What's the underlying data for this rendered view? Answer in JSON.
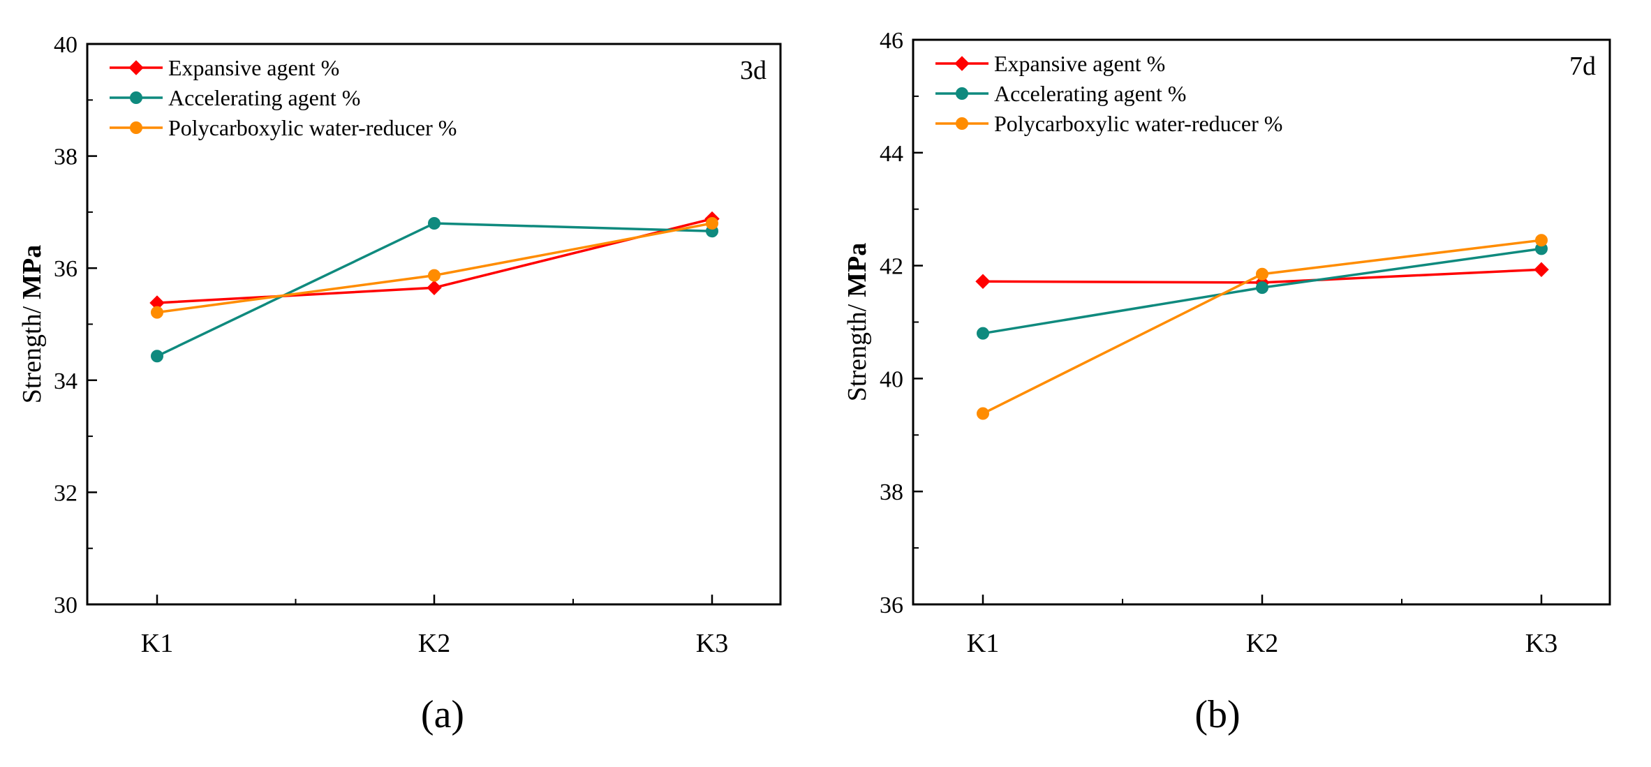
{
  "figure": {
    "captions": [
      "(a)",
      "(b)"
    ]
  },
  "chart_data": [
    {
      "type": "line",
      "corner_label": "3d",
      "ylabel_prefix": "Strength/",
      "ylabel_unit": "MPa",
      "xlabel": "",
      "categories": [
        "K1",
        "K2",
        "K3"
      ],
      "ylim": [
        30,
        40
      ],
      "yticks": [
        30,
        32,
        34,
        36,
        38,
        40
      ],
      "grid": false,
      "legend_position": "top-left",
      "series": [
        {
          "name": "Expansive agent  %",
          "color": "#ff0000",
          "marker": "diamond",
          "values": [
            35.38,
            35.65,
            36.88
          ]
        },
        {
          "name": "Accelerating agent %",
          "color": "#0f8a7e",
          "marker": "circle",
          "values": [
            34.43,
            36.8,
            36.66
          ]
        },
        {
          "name": "Polycarboxylic water-reducer  %",
          "color": "#ff8c00",
          "marker": "circle",
          "values": [
            35.21,
            35.87,
            36.8
          ]
        }
      ]
    },
    {
      "type": "line",
      "corner_label": "7d",
      "ylabel_prefix": "Strength/",
      "ylabel_unit": "MPa",
      "xlabel": "",
      "categories": [
        "K1",
        "K2",
        "K3"
      ],
      "ylim": [
        36,
        46
      ],
      "yticks": [
        36,
        38,
        40,
        42,
        44,
        46
      ],
      "grid": false,
      "legend_position": "top-left",
      "series": [
        {
          "name": "Expansive agent  %",
          "color": "#ff0000",
          "marker": "diamond",
          "values": [
            41.72,
            41.7,
            41.93
          ]
        },
        {
          "name": "Accelerating agent %",
          "color": "#0f8a7e",
          "marker": "circle",
          "values": [
            40.8,
            41.61,
            42.3
          ]
        },
        {
          "name": "Polycarboxylic water-reducer  %",
          "color": "#ff8c00",
          "marker": "circle",
          "values": [
            39.38,
            41.85,
            42.45
          ]
        }
      ]
    }
  ]
}
